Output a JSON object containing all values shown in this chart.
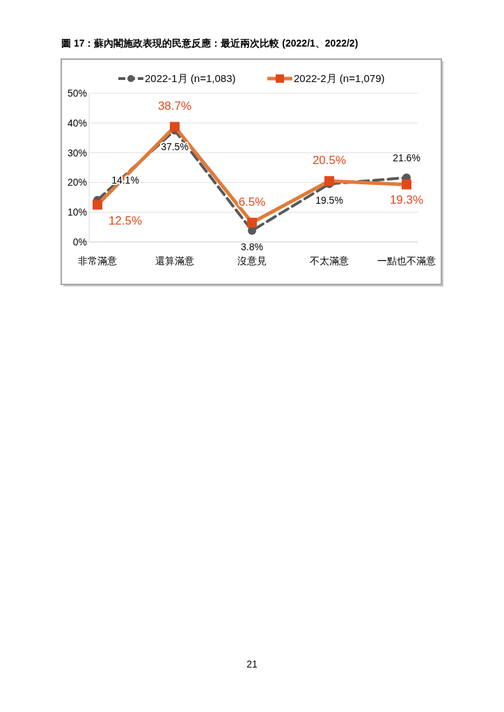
{
  "chart_data": {
    "type": "line",
    "title": "圖 17：蘇內閣施政表現的民意反應：最近兩次比較 (2022/1、2022/2)",
    "categories": [
      "非常滿意",
      "還算滿意",
      "沒意見",
      "不太滿意",
      "一點也不滿意"
    ],
    "series": [
      {
        "name": "2022-1月 (n=1,083)",
        "color": "#595959",
        "values": [
          14.1,
          37.5,
          3.8,
          19.5,
          21.6
        ],
        "value_labels": [
          "14.1%",
          "37.5%",
          "3.8%",
          "19.5%",
          "21.6%"
        ],
        "marker": "circle",
        "line_style": "dashed"
      },
      {
        "name": "2022-2月 (n=1,079)",
        "color": "#e07b39",
        "values": [
          12.5,
          38.7,
          6.5,
          20.5,
          19.3
        ],
        "value_labels": [
          "12.5%",
          "38.7%",
          "6.5%",
          "20.5%",
          "19.3%"
        ],
        "marker": "square",
        "line_style": "solid"
      }
    ],
    "ylim": [
      0,
      50
    ],
    "yticks": [
      {
        "value": 0,
        "label": "0%"
      },
      {
        "value": 10,
        "label": "10%"
      },
      {
        "value": 20,
        "label": "20%"
      },
      {
        "value": 30,
        "label": "30%"
      },
      {
        "value": 40,
        "label": "40%"
      },
      {
        "value": 50,
        "label": "50%"
      }
    ],
    "grid": "y",
    "legend": "top",
    "annotations": [
      "21"
    ]
  }
}
